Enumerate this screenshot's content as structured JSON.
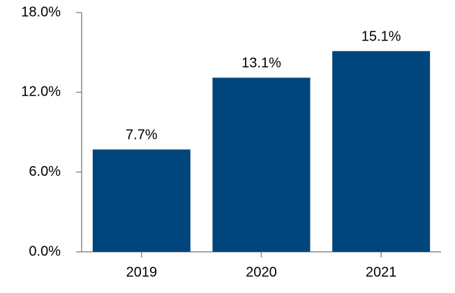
{
  "chart_data": {
    "type": "bar",
    "categories": [
      "2019",
      "2020",
      "2021"
    ],
    "values": [
      7.7,
      13.1,
      15.1
    ],
    "value_labels": [
      "7.7%",
      "13.1%",
      "15.1%"
    ],
    "color": "#00457c",
    "ylim": [
      0,
      18
    ],
    "yticks": [
      {
        "value": 0,
        "label": "0.0%"
      },
      {
        "value": 6,
        "label": "6.0%"
      },
      {
        "value": 12,
        "label": "12.0%"
      },
      {
        "value": 18,
        "label": "18.0%"
      }
    ],
    "grid": false
  }
}
